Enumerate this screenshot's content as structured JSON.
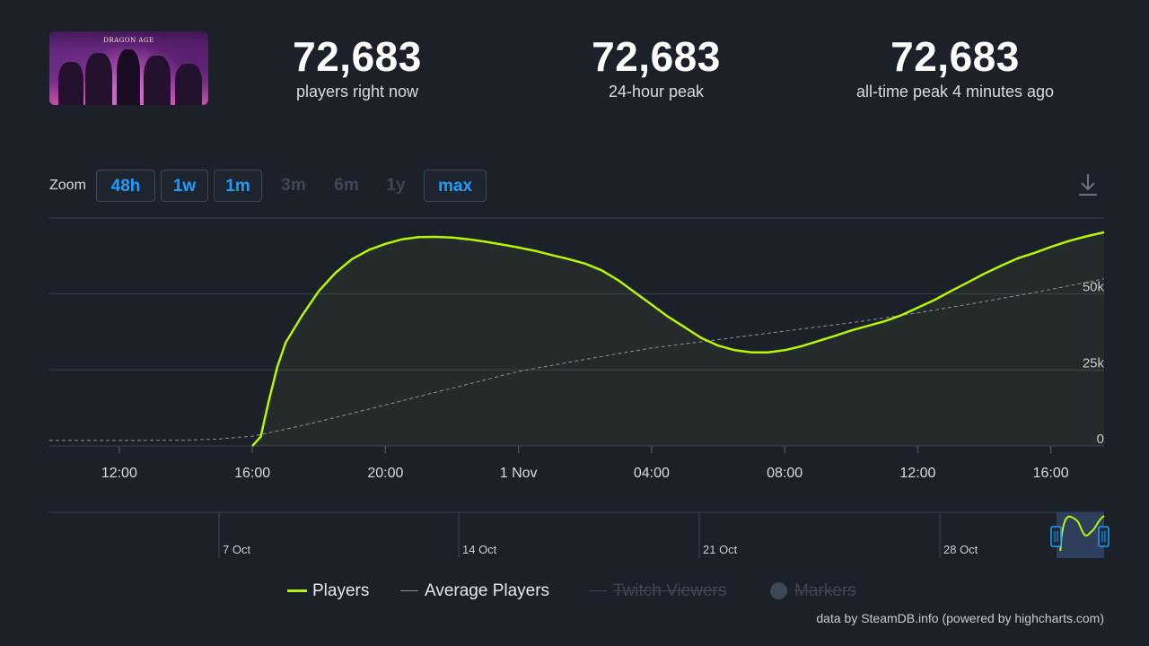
{
  "game": {
    "thumbnail_title": "DRAGON AGE"
  },
  "stats": [
    {
      "value": "72,683",
      "label": "players right now"
    },
    {
      "value": "72,683",
      "label": "24-hour peak"
    },
    {
      "value": "72,683",
      "label": "all-time peak 4 minutes ago"
    }
  ],
  "zoom": {
    "label": "Zoom",
    "buttons": [
      {
        "label": "48h",
        "enabled": true
      },
      {
        "label": "1w",
        "enabled": true
      },
      {
        "label": "1m",
        "enabled": true
      },
      {
        "label": "3m",
        "enabled": false
      },
      {
        "label": "6m",
        "enabled": false
      },
      {
        "label": "1y",
        "enabled": false
      },
      {
        "label": "max",
        "enabled": true
      }
    ]
  },
  "icons": {
    "download": "download-icon"
  },
  "colors": {
    "players": "#b7f500",
    "average": "#8a8f98",
    "accent": "#1a9fff",
    "background": "#1b2029"
  },
  "chart_data": {
    "type": "line",
    "y_ticks": [
      "0",
      "25k",
      "50k"
    ],
    "ylim": [
      0,
      75000
    ],
    "x_ticks": [
      "12:00",
      "16:00",
      "20:00",
      "1 Nov",
      "04:00",
      "08:00",
      "12:00",
      "16:00"
    ],
    "x_tick_hours": [
      12,
      16,
      20,
      24,
      28,
      32,
      36,
      40
    ],
    "xlim_hours": [
      9.9,
      41.6
    ],
    "series": [
      {
        "name": "Players",
        "x_hours": [
          16.0,
          16.25,
          16.5,
          16.75,
          17.0,
          17.5,
          18.0,
          18.5,
          19.0,
          19.5,
          20.0,
          20.5,
          21.0,
          21.5,
          22.0,
          22.5,
          23.0,
          23.5,
          24.0,
          24.5,
          25.0,
          25.5,
          26.0,
          26.5,
          27.0,
          27.5,
          28.0,
          28.5,
          29.0,
          29.5,
          30.0,
          30.5,
          31.0,
          31.5,
          32.0,
          32.5,
          33.0,
          33.5,
          34.0,
          34.5,
          35.0,
          35.5,
          36.0,
          36.5,
          37.0,
          37.5,
          38.0,
          38.5,
          39.0,
          39.5,
          40.0,
          40.5,
          41.0,
          41.6
        ],
        "values": [
          0,
          3000,
          15000,
          26000,
          34000,
          43000,
          51000,
          57000,
          61500,
          64500,
          66500,
          68000,
          68700,
          68800,
          68600,
          68000,
          67200,
          66300,
          65300,
          64200,
          62800,
          61500,
          60000,
          57800,
          54500,
          50500,
          46500,
          42500,
          39000,
          35500,
          33000,
          31500,
          30800,
          30800,
          31500,
          32800,
          34500,
          36200,
          38000,
          39500,
          41000,
          43000,
          45500,
          48000,
          51000,
          53800,
          56700,
          59300,
          61700,
          63500,
          65500,
          67300,
          68800,
          70300
        ]
      },
      {
        "name": "Average Players",
        "x_hours": [
          9.9,
          12,
          14,
          15,
          16,
          17,
          18,
          20,
          22,
          24,
          26,
          28,
          30,
          32,
          34,
          36,
          38,
          40,
          41.6
        ],
        "values": [
          1800,
          1800,
          1900,
          2300,
          3200,
          5500,
          8000,
          13500,
          19000,
          24500,
          28500,
          32200,
          35000,
          37800,
          40500,
          43800,
          47500,
          51500,
          55000
        ]
      }
    ],
    "navigator": {
      "tick_labels": [
        "7 Oct",
        "14 Oct",
        "21 Oct",
        "28 Oct"
      ]
    },
    "legend": [
      {
        "label": "Players",
        "enabled": true
      },
      {
        "label": "Average Players",
        "enabled": true
      },
      {
        "label": "Twitch Viewers",
        "enabled": false
      },
      {
        "label": "Markers",
        "enabled": false
      }
    ]
  },
  "credit": "data by SteamDB.info (powered by highcharts.com)"
}
